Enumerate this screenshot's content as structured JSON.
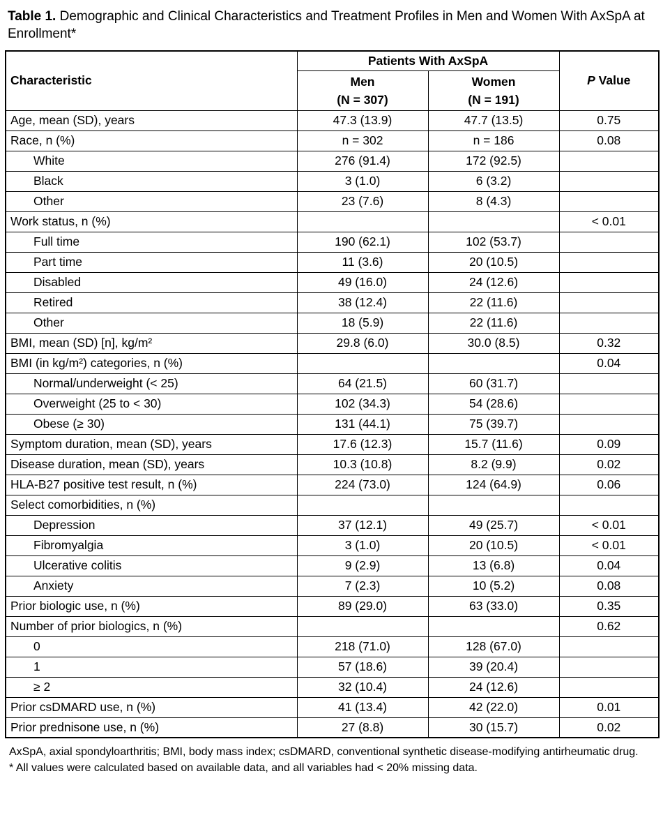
{
  "title": {
    "label": "Table 1.",
    "text": " Demographic and Clinical Characteristics and Treatment Profiles in Men and Women With AxSpA at Enrollment*"
  },
  "table": {
    "header": {
      "characteristic": "Characteristic",
      "group": "Patients With AxSpA",
      "men_label": "Men",
      "men_n": "(N = 307)",
      "women_label": "Women",
      "women_n": "(N = 191)",
      "p_italic": "P",
      "p_rest": " Value"
    },
    "rows": [
      {
        "label": "Age, mean (SD), years",
        "indent": false,
        "men": "47.3 (13.9)",
        "women": "47.7 (13.5)",
        "p": "0.75"
      },
      {
        "label": "Race, n (%)",
        "indent": false,
        "men": "n = 302",
        "women": "n = 186",
        "p": "0.08"
      },
      {
        "label": "White",
        "indent": true,
        "men": "276 (91.4)",
        "women": "172 (92.5)",
        "p": ""
      },
      {
        "label": "Black",
        "indent": true,
        "men": "3 (1.0)",
        "women": "6 (3.2)",
        "p": ""
      },
      {
        "label": "Other",
        "indent": true,
        "men": "23 (7.6)",
        "women": "8 (4.3)",
        "p": ""
      },
      {
        "label": "Work status, n (%)",
        "indent": false,
        "men": "",
        "women": "",
        "p": "< 0.01"
      },
      {
        "label": "Full time",
        "indent": true,
        "men": "190 (62.1)",
        "women": "102 (53.7)",
        "p": ""
      },
      {
        "label": "Part time",
        "indent": true,
        "men": "11 (3.6)",
        "women": "20 (10.5)",
        "p": ""
      },
      {
        "label": "Disabled",
        "indent": true,
        "men": "49 (16.0)",
        "women": "24 (12.6)",
        "p": ""
      },
      {
        "label": "Retired",
        "indent": true,
        "men": "38 (12.4)",
        "women": "22 (11.6)",
        "p": ""
      },
      {
        "label": "Other",
        "indent": true,
        "men": "18 (5.9)",
        "women": "22 (11.6)",
        "p": ""
      },
      {
        "label": "BMI, mean (SD) [n], kg/m²",
        "indent": false,
        "men": "29.8 (6.0)",
        "women": "30.0 (8.5)",
        "p": "0.32"
      },
      {
        "label": "BMI (in kg/m²) categories, n (%)",
        "indent": false,
        "men": "",
        "women": "",
        "p": "0.04"
      },
      {
        "label": "Normal/underweight (< 25)",
        "indent": true,
        "men": "64 (21.5)",
        "women": "60 (31.7)",
        "p": ""
      },
      {
        "label": "Overweight (25 to < 30)",
        "indent": true,
        "men": "102 (34.3)",
        "women": "54 (28.6)",
        "p": ""
      },
      {
        "label": "Obese (≥ 30)",
        "indent": true,
        "men": "131 (44.1)",
        "women": "75 (39.7)",
        "p": ""
      },
      {
        "label": "Symptom duration, mean (SD), years",
        "indent": false,
        "men": "17.6 (12.3)",
        "women": "15.7 (11.6)",
        "p": "0.09"
      },
      {
        "label": "Disease duration, mean (SD), years",
        "indent": false,
        "men": "10.3 (10.8)",
        "women": "8.2 (9.9)",
        "p": "0.02"
      },
      {
        "label": "HLA-B27 positive test result, n (%)",
        "indent": false,
        "men": "224 (73.0)",
        "women": "124 (64.9)",
        "p": "0.06"
      },
      {
        "label": "Select comorbidities, n (%)",
        "indent": false,
        "men": "",
        "women": "",
        "p": ""
      },
      {
        "label": "Depression",
        "indent": true,
        "men": "37 (12.1)",
        "women": "49 (25.7)",
        "p": "< 0.01"
      },
      {
        "label": "Fibromyalgia",
        "indent": true,
        "men": "3 (1.0)",
        "women": "20 (10.5)",
        "p": "< 0.01"
      },
      {
        "label": "Ulcerative colitis",
        "indent": true,
        "men": "9 (2.9)",
        "women": "13 (6.8)",
        "p": "0.04"
      },
      {
        "label": "Anxiety",
        "indent": true,
        "men": "7 (2.3)",
        "women": "10 (5.2)",
        "p": "0.08"
      },
      {
        "label": "Prior biologic use, n (%)",
        "indent": false,
        "men": "89 (29.0)",
        "women": "63 (33.0)",
        "p": "0.35"
      },
      {
        "label": "Number of prior biologics, n (%)",
        "indent": false,
        "men": "",
        "women": "",
        "p": "0.62"
      },
      {
        "label": "0",
        "indent": true,
        "men": "218 (71.0)",
        "women": "128 (67.0)",
        "p": ""
      },
      {
        "label": "1",
        "indent": true,
        "men": "57 (18.6)",
        "women": "39 (20.4)",
        "p": ""
      },
      {
        "label": "≥ 2",
        "indent": true,
        "men": "32 (10.4)",
        "women": "24 (12.6)",
        "p": ""
      },
      {
        "label": "Prior csDMARD use, n (%)",
        "indent": false,
        "men": "41 (13.4)",
        "women": "42 (22.0)",
        "p": "0.01"
      },
      {
        "label": "Prior prednisone use, n (%)",
        "indent": false,
        "men": "27 (8.8)",
        "women": "30 (15.7)",
        "p": "0.02"
      }
    ]
  },
  "footnotes": [
    "AxSpA, axial spondyloarthritis; BMI, body mass index; csDMARD, conventional synthetic disease-modifying antirheumatic drug.",
    "* All values were calculated based on available data, and all variables had < 20% missing data."
  ]
}
